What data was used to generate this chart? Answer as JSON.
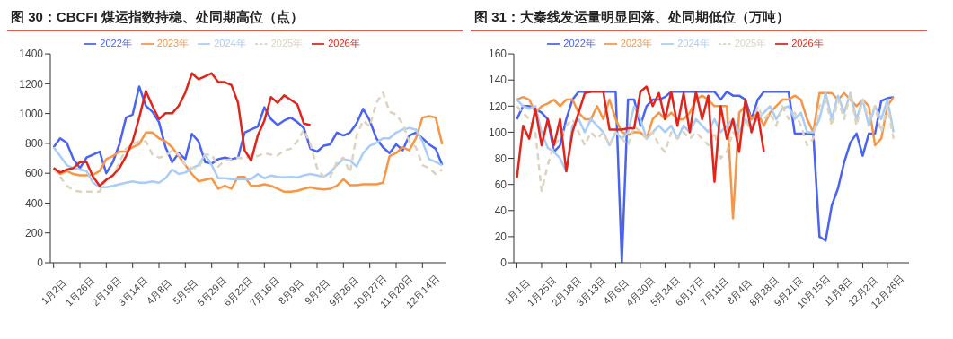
{
  "chart_data": [
    {
      "type": "line",
      "title": "图 30：CBCFI 煤运指数持稳、处同期高位（点）",
      "categories": [
        "1月2日",
        null,
        null,
        null,
        "1月26日",
        null,
        null,
        null,
        "2月19日",
        null,
        null,
        null,
        "3月14日",
        null,
        null,
        null,
        "4月8日",
        null,
        null,
        null,
        "5月5日",
        null,
        null,
        null,
        "5月29日",
        null,
        null,
        null,
        "6月22日",
        null,
        null,
        null,
        "7月16日",
        null,
        null,
        null,
        "8月9日",
        null,
        null,
        null,
        "9月2日",
        null,
        null,
        null,
        "9月26日",
        null,
        null,
        null,
        "10月27日",
        null,
        null,
        null,
        "11月20日",
        null,
        null,
        null,
        "12月14日",
        null,
        null,
        null
      ],
      "series": [
        {
          "name": "2022年",
          "color": "#4a63f2",
          "values": [
            774,
            834,
            804,
            695,
            635,
            705,
            725,
            745,
            600,
            675,
            795,
            973,
            993,
            1181,
            1052,
            1012,
            943,
            774,
            675,
            735,
            695,
            864,
            814,
            675,
            665,
            695,
            705,
            695,
            705,
            873,
            893,
            913,
            1042,
            963,
            923,
            953,
            973,
            943,
            903,
            764,
            744,
            784,
            794,
            873,
            853,
            873,
            933,
            1032,
            953,
            834,
            774,
            735,
            794,
            754,
            853,
            873,
            834,
            794,
            764,
            655
          ]
        },
        {
          "name": "2023年",
          "color": "#f79646",
          "values": [
            635,
            595,
            615,
            595,
            586,
            586,
            590,
            615,
            695,
            715,
            745,
            745,
            774,
            794,
            873,
            873,
            834,
            814,
            774,
            715,
            655,
            595,
            546,
            556,
            566,
            496,
            516,
            496,
            576,
            576,
            516,
            516,
            526,
            516,
            496,
            476,
            476,
            482,
            496,
            506,
            496,
            492,
            496,
            516,
            560,
            520,
            520,
            526,
            526,
            526,
            536,
            715,
            735,
            774,
            754,
            834,
            973,
            983,
            973,
            794
          ]
        },
        {
          "name": "2024年",
          "color": "#a9cdf7",
          "values": [
            774,
            715,
            655,
            635,
            625,
            615,
            536,
            506,
            506,
            516,
            526,
            536,
            546,
            536,
            536,
            546,
            536,
            566,
            625,
            595,
            605,
            635,
            655,
            725,
            655,
            566,
            566,
            560,
            560,
            560,
            560,
            595,
            566,
            585,
            576,
            572,
            576,
            572,
            586,
            595,
            586,
            576,
            605,
            655,
            695,
            685,
            645,
            735,
            784,
            804,
            834,
            834,
            873,
            893,
            903,
            893,
            814,
            695,
            675,
            655
          ]
        },
        {
          "name": "2025年",
          "color": "#ddd3bf",
          "line_style": "dashed",
          "values": [
            635,
            576,
            516,
            486,
            476,
            476,
            476,
            476,
            566,
            576,
            675,
            764,
            794,
            814,
            814,
            725,
            705,
            715,
            754,
            725,
            655,
            635,
            635,
            725,
            725,
            645,
            685,
            695,
            705,
            695,
            725,
            715,
            735,
            725,
            719,
            754,
            764,
            814,
            893,
            794,
            635,
            576,
            576,
            675,
            705,
            605,
            853,
            953,
            913,
            1072,
            1141,
            1012,
            993,
            933,
            814,
            774,
            655,
            635,
            595,
            625
          ]
        },
        {
          "name": "2026年",
          "color": "#e1251b",
          "values": [
            635,
            605,
            625,
            635,
            675,
            675,
            576,
            516,
            556,
            586,
            635,
            715,
            814,
            973,
            1151,
            1052,
            963,
            1002,
            1002,
            1052,
            1141,
            1270,
            1230,
            1250,
            1270,
            1211,
            1211,
            1191,
            1072,
            754,
            685,
            853,
            953,
            1111,
            1072,
            1122,
            1092,
            1062,
            933,
            923,
            null,
            null,
            null,
            null,
            null,
            null,
            null,
            null,
            null,
            null,
            null,
            null,
            null,
            null,
            null,
            null,
            null,
            null,
            null,
            null
          ]
        }
      ],
      "ylim": [
        0,
        1400
      ],
      "yticks": [
        0,
        200,
        400,
        600,
        800,
        1000,
        1200,
        1400
      ],
      "legend": "top"
    },
    {
      "type": "line",
      "title": "图 31：大秦线发运量明显回落、处同期低位（万吨）",
      "categories": [
        "1月1日",
        null,
        null,
        null,
        "1月25日",
        null,
        null,
        null,
        "2月18日",
        null,
        null,
        null,
        "3月13日",
        null,
        null,
        null,
        "4月6日",
        null,
        null,
        null,
        "4月30日",
        null,
        null,
        null,
        "5月24日",
        null,
        null,
        null,
        "6月17日",
        null,
        null,
        null,
        "7月11日",
        null,
        null,
        null,
        "8月4日",
        null,
        null,
        null,
        "8月28日",
        null,
        null,
        null,
        "9月21日",
        null,
        null,
        null,
        "10月15日",
        null,
        null,
        null,
        "11月8日",
        null,
        null,
        null,
        "12月2日",
        null,
        null,
        null,
        "12月26日",
        null,
        null,
        null
      ],
      "series": [
        {
          "name": "2022年",
          "color": "#4a63f2",
          "values": [
            110,
            120,
            120,
            118,
            115,
            110,
            85,
            90,
            110,
            125,
            131,
            131,
            131,
            null,
            131,
            131,
            131,
            0,
            125,
            125,
            105,
            120,
            125,
            125,
            127,
            131,
            131,
            131,
            131,
            131,
            131,
            131,
            131,
            125,
            131,
            128,
            128,
            125,
            110,
            125,
            131,
            131,
            131,
            131,
            131,
            99,
            99,
            99,
            99,
            20,
            17,
            44,
            57,
            77,
            92,
            99,
            82,
            99,
            99,
            124,
            126,
            127,
            null,
            null
          ]
        },
        {
          "name": "2023年",
          "color": "#f79646",
          "values": [
            125,
            127,
            125,
            115,
            120,
            122,
            125,
            120,
            125,
            125,
            115,
            110,
            110,
            120,
            110,
            125,
            110,
            100,
            98,
            100,
            100,
            95,
            110,
            115,
            110,
            115,
            110,
            110,
            115,
            125,
            128,
            125,
            120,
            120,
            120,
            34,
            115,
            120,
            110,
            115,
            105,
            115,
            120,
            125,
            125,
            128,
            125,
            110,
            100,
            130,
            130,
            130,
            125,
            130,
            125,
            120,
            125,
            120,
            90,
            95,
            120,
            127,
            null,
            null
          ]
        },
        {
          "name": "2024年",
          "color": "#a9cdf7",
          "values": [
            125,
            120,
            118,
            120,
            100,
            88,
            85,
            80,
            70,
            105,
            110,
            100,
            110,
            105,
            100,
            90,
            100,
            95,
            100,
            120,
            110,
            95,
            100,
            105,
            100,
            105,
            95,
            105,
            100,
            110,
            105,
            100,
            110,
            100,
            105,
            110,
            100,
            110,
            105,
            110,
            115,
            120,
            110,
            118,
            120,
            110,
            115,
            100,
            100,
            110,
            130,
            110,
            128,
            115,
            130,
            110,
            125,
            105,
            120,
            110,
            125,
            100,
            null,
            null
          ]
        },
        {
          "name": "2025年",
          "color": "#ddd3bf",
          "line_style": "dashed",
          "values": [
            120,
            115,
            110,
            100,
            55,
            75,
            90,
            95,
            105,
            110,
            100,
            90,
            100,
            95,
            100,
            90,
            100,
            95,
            90,
            105,
            100,
            95,
            100,
            90,
            85,
            100,
            95,
            100,
            95,
            100,
            95,
            90,
            100,
            80,
            85,
            100,
            95,
            110,
            100,
            120,
            110,
            115,
            105,
            120,
            110,
            115,
            105,
            90,
            95,
            120,
            125,
            105,
            125,
            110,
            130,
            105,
            125,
            110,
            120,
            100,
            120,
            95,
            null,
            null
          ]
        },
        {
          "name": "2026年",
          "color": "#e1251b",
          "values": [
            65,
            105,
            95,
            118,
            90,
            110,
            90,
            110,
            70,
            100,
            115,
            130,
            131,
            131,
            131,
            102,
            102,
            102,
            103,
            103,
            131,
            135,
            120,
            130,
            110,
            131,
            105,
            130,
            100,
            131,
            110,
            128,
            62,
            120,
            95,
            110,
            85,
            125,
            100,
            115,
            85,
            null,
            null,
            null,
            null,
            null,
            null,
            null,
            null,
            null,
            null,
            null,
            null,
            null,
            null,
            null,
            null,
            null,
            null,
            null,
            null,
            null,
            null,
            null
          ]
        }
      ],
      "ylim": [
        0,
        160
      ],
      "yticks": [
        0,
        20,
        40,
        60,
        80,
        100,
        120,
        140,
        160
      ],
      "legend": "top"
    }
  ]
}
